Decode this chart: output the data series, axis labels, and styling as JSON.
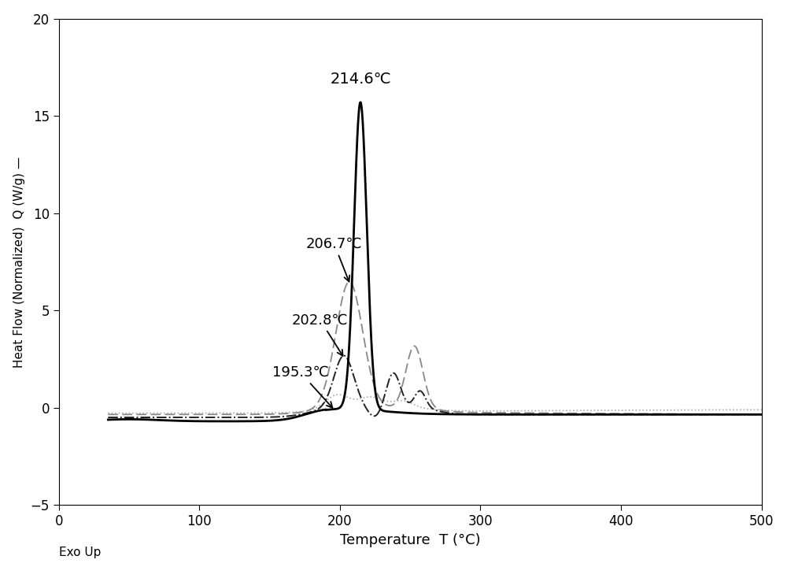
{
  "xlabel": "Temperature  T (°C)",
  "ylabel": "Heat Flow (Normalized)  Q (W/g) —",
  "xlim": [
    0,
    500
  ],
  "ylim": [
    -5,
    20
  ],
  "yticks": [
    -5,
    0,
    5,
    10,
    15,
    20
  ],
  "xticks": [
    0,
    100,
    200,
    300,
    400,
    500
  ],
  "exo_up_label": "Exo Up",
  "background_color": "#ffffff"
}
